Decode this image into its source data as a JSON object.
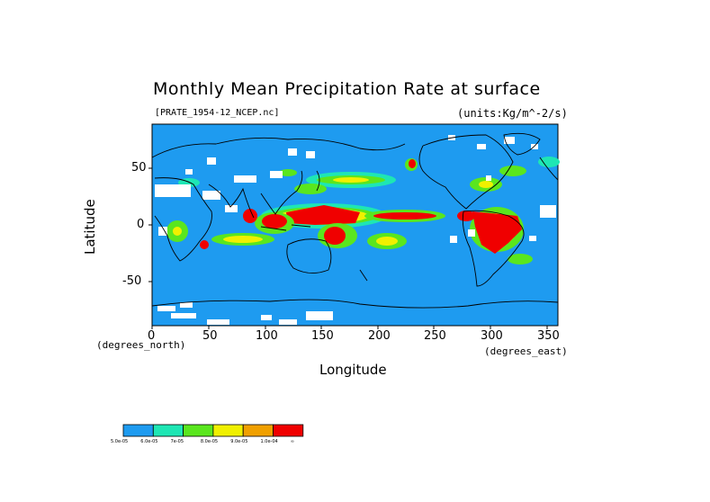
{
  "title": "Monthly Mean Precipitation Rate at surface",
  "file_label": "[PRATE_1954-12_NCEP.nc]",
  "units_label": "(units:Kg/m^-2/s)",
  "xlabel": "Longitude",
  "ylabel": "Latitude",
  "x_unit_note": "(degrees_north)",
  "x_unit_note2": "(degrees_east)",
  "x_ticks": [
    "0",
    "50",
    "100",
    "150",
    "200",
    "250",
    "300",
    "350"
  ],
  "y_ticks": [
    "50",
    "0",
    "-50"
  ],
  "colorbar": {
    "colors": [
      "#1e9bf0",
      "#1ee6b4",
      "#5ae61e",
      "#f0f000",
      "#f0a000",
      "#f00000"
    ],
    "labels": [
      "5.0e-05",
      "6.0e-05",
      "7e-05",
      "8.0e-05",
      "9.0e-05",
      "1.0e-04",
      "∞"
    ]
  },
  "colors": {
    "ocean_base": "#1e9bf0",
    "missing": "#ffffff"
  }
}
